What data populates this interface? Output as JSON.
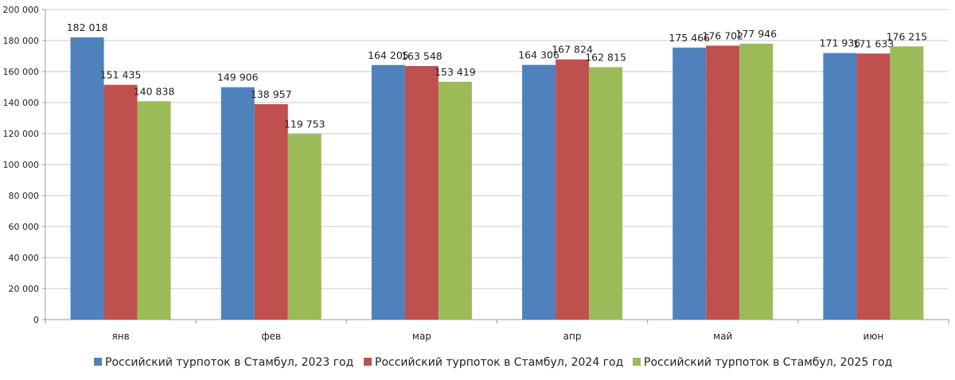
{
  "chart_data": {
    "type": "bar",
    "title": "",
    "xlabel": "",
    "ylabel": "",
    "ylim": [
      0,
      200000
    ],
    "yticks": [
      0,
      20000,
      40000,
      60000,
      80000,
      100000,
      120000,
      140000,
      160000,
      180000,
      200000
    ],
    "ytick_labels": [
      "0",
      "20 000",
      "40 000",
      "60 000",
      "80 000",
      "100 000",
      "120 000",
      "140 000",
      "160 000",
      "180 000",
      "200 000"
    ],
    "grid": true,
    "legend_position": "bottom",
    "categories": [
      "янв",
      "фев",
      "мар",
      "апр",
      "май",
      "июн"
    ],
    "series": [
      {
        "name": "Российский турпоток в Стамбул, 2023 год",
        "color": "#4f81bd",
        "values": [
          182018,
          149906,
          164205,
          164306,
          175466,
          171936
        ],
        "labels": [
          "182 018",
          "149 906",
          "164 205",
          "164 306",
          "175 466",
          "171 936"
        ]
      },
      {
        "name": "Российский турпоток в Стамбул, 2024 год",
        "color": "#c0504d",
        "values": [
          151435,
          138957,
          163548,
          167824,
          176702,
          171633
        ],
        "labels": [
          "151 435",
          "138 957",
          "163 548",
          "167 824",
          "176 702",
          "171 633"
        ]
      },
      {
        "name": "Российский турпоток в Стамбул, 2025 год",
        "color": "#9bbb59",
        "values": [
          140838,
          119753,
          153419,
          162815,
          177946,
          176215
        ],
        "labels": [
          "140 838",
          "119 753",
          "153 419",
          "162 815",
          "177 946",
          "176 215"
        ]
      }
    ]
  }
}
